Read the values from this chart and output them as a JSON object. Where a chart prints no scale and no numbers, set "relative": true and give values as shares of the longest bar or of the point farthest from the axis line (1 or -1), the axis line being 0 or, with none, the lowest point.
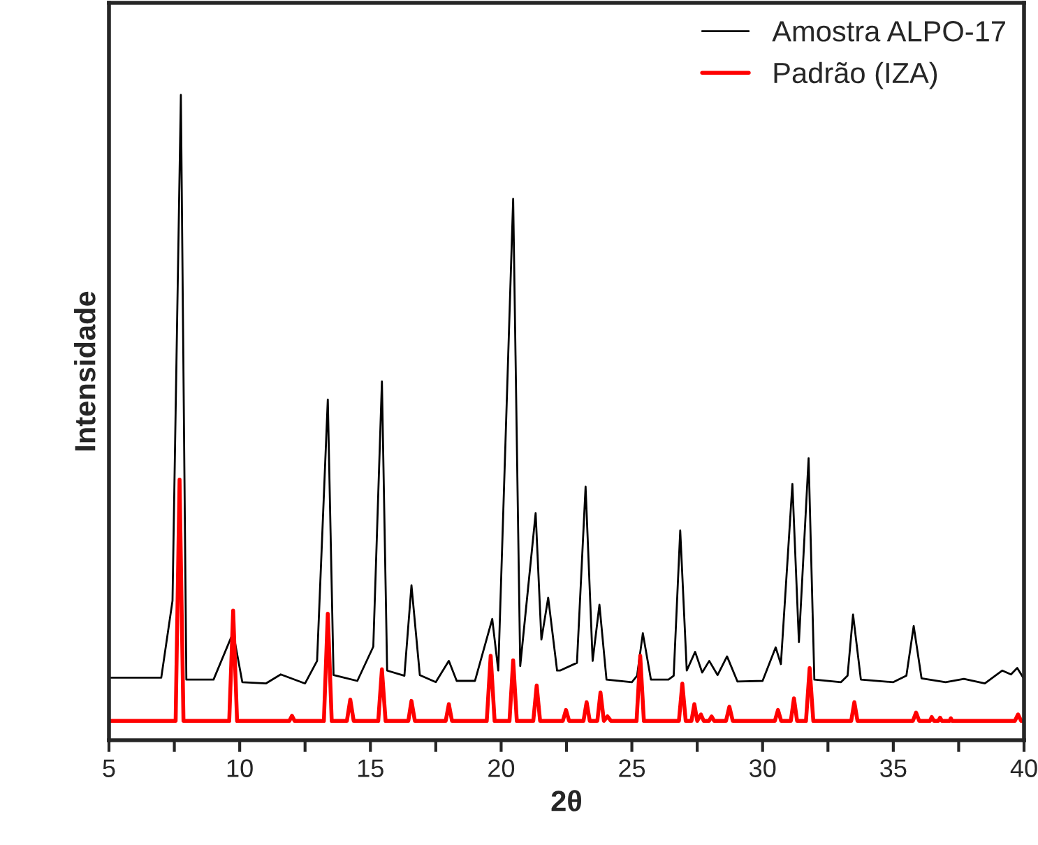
{
  "chart_data": {
    "type": "line",
    "relative": true,
    "xlabel": "2θ",
    "ylabel": "Intensidade",
    "legend": "top right",
    "grid": false,
    "marker": "none",
    "line_style": "solid",
    "xlim": [
      5,
      40
    ],
    "xticks": [
      5,
      {
        "value": 7.5,
        "label": null
      },
      10,
      {
        "value": 12.5,
        "label": null
      },
      15,
      {
        "value": 17.5,
        "label": null
      },
      20,
      {
        "value": 22.5,
        "label": null
      },
      25,
      {
        "value": 27.5,
        "label": null
      },
      30,
      {
        "value": 32.5,
        "label": null
      },
      35,
      {
        "value": 37.5,
        "label": null
      },
      40
    ],
    "series": [
      {
        "name": "Amostra ALPO-17",
        "color": "#000000",
        "x": [
          5,
          7.0,
          7.43,
          7.75,
          7.96,
          9.0,
          9.75,
          10.1,
          11.0,
          11.57,
          12.5,
          12.96,
          13.37,
          13.59,
          14.5,
          15.11,
          15.44,
          15.64,
          16.3,
          16.57,
          16.89,
          17.5,
          18.0,
          18.3,
          19.0,
          19.66,
          19.89,
          20.46,
          20.73,
          21.32,
          21.54,
          21.8,
          22.14,
          22.25,
          22.9,
          23.23,
          23.5,
          23.76,
          24.03,
          25.0,
          25.2,
          25.42,
          25.73,
          26.4,
          26.6,
          26.85,
          27.1,
          27.42,
          27.69,
          27.96,
          28.28,
          28.64,
          29.04,
          30.0,
          30.5,
          30.7,
          31.14,
          31.39,
          31.76,
          31.98,
          33.0,
          33.25,
          33.46,
          33.76,
          35.0,
          35.5,
          35.78,
          36.08,
          37.0,
          37.7,
          38.5,
          39.17,
          39.5,
          39.74,
          40
        ],
        "values": [
          0.097,
          0.097,
          0.216,
          1.0,
          0.094,
          0.094,
          0.167,
          0.09,
          0.088,
          0.102,
          0.088,
          0.123,
          0.528,
          0.101,
          0.092,
          0.145,
          0.556,
          0.108,
          0.1,
          0.24,
          0.101,
          0.09,
          0.123,
          0.092,
          0.092,
          0.188,
          0.108,
          0.839,
          0.115,
          0.352,
          0.156,
          0.221,
          0.108,
          0.108,
          0.12,
          0.393,
          0.123,
          0.21,
          0.094,
          0.09,
          0.1,
          0.166,
          0.094,
          0.094,
          0.1,
          0.325,
          0.108,
          0.137,
          0.105,
          0.123,
          0.101,
          0.13,
          0.091,
          0.092,
          0.144,
          0.118,
          0.397,
          0.152,
          0.437,
          0.094,
          0.09,
          0.1,
          0.195,
          0.094,
          0.09,
          0.1,
          0.177,
          0.096,
          0.09,
          0.095,
          0.088,
          0.108,
          0.102,
          0.112,
          0.095
        ]
      },
      {
        "name": "Padrão (IZA)",
        "color": "#ff0000",
        "x": [
          5,
          7.55,
          7.7,
          7.85,
          9.6,
          9.75,
          9.9,
          11.9,
          12.0,
          12.1,
          13.22,
          13.37,
          13.52,
          14.1,
          14.23,
          14.36,
          15.3,
          15.44,
          15.58,
          16.45,
          16.57,
          16.7,
          17.88,
          18.0,
          18.12,
          19.45,
          19.6,
          19.75,
          20.32,
          20.46,
          20.6,
          21.23,
          21.36,
          21.49,
          22.36,
          22.48,
          22.6,
          23.15,
          23.27,
          23.39,
          23.68,
          23.8,
          23.93,
          24.07,
          24.2,
          25.18,
          25.32,
          25.46,
          26.8,
          26.93,
          27.06,
          27.28,
          27.39,
          27.5,
          27.64,
          27.75,
          27.95,
          28.05,
          28.15,
          28.6,
          28.73,
          28.86,
          30.47,
          30.59,
          30.71,
          31.08,
          31.2,
          31.32,
          31.66,
          31.8,
          31.94,
          33.39,
          33.51,
          33.63,
          35.75,
          35.87,
          35.99,
          36.4,
          36.47,
          36.55,
          36.72,
          36.79,
          36.86,
          37.15,
          37.2,
          37.25,
          39.65,
          39.77,
          39.89,
          40
        ],
        "values": [
          0.03,
          0.03,
          0.404,
          0.03,
          0.03,
          0.201,
          0.03,
          0.03,
          0.038,
          0.03,
          0.03,
          0.196,
          0.03,
          0.03,
          0.063,
          0.03,
          0.03,
          0.11,
          0.03,
          0.03,
          0.061,
          0.03,
          0.03,
          0.056,
          0.03,
          0.03,
          0.131,
          0.03,
          0.03,
          0.124,
          0.03,
          0.03,
          0.085,
          0.03,
          0.03,
          0.047,
          0.03,
          0.03,
          0.059,
          0.03,
          0.03,
          0.074,
          0.03,
          0.037,
          0.03,
          0.03,
          0.131,
          0.03,
          0.03,
          0.088,
          0.03,
          0.03,
          0.056,
          0.03,
          0.04,
          0.03,
          0.03,
          0.037,
          0.03,
          0.03,
          0.052,
          0.03,
          0.03,
          0.047,
          0.03,
          0.03,
          0.065,
          0.03,
          0.03,
          0.112,
          0.03,
          0.03,
          0.059,
          0.03,
          0.03,
          0.043,
          0.03,
          0.03,
          0.036,
          0.03,
          0.03,
          0.035,
          0.03,
          0.03,
          0.034,
          0.03,
          0.03,
          0.04,
          0.03,
          0.03
        ]
      }
    ]
  }
}
